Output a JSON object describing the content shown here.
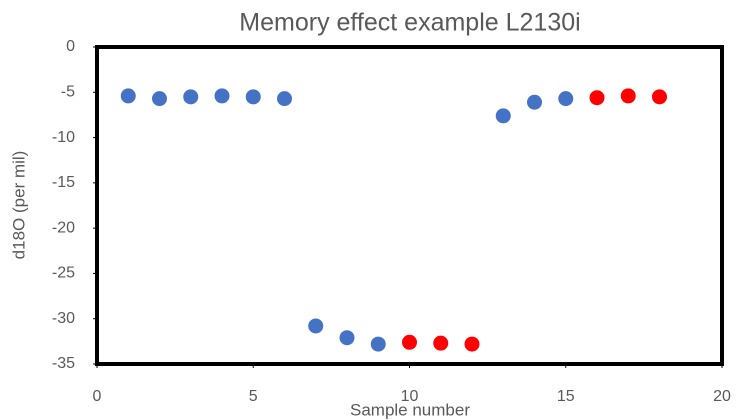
{
  "chart_data": {
    "type": "scatter",
    "title": "Memory effect example L2130i",
    "x_label": "Sample number",
    "y_label": "d18O (per mil)",
    "series": [
      {
        "color": "#4472c4",
        "x": [
          1,
          2,
          3,
          4,
          5,
          6,
          7,
          8,
          9,
          13,
          14,
          15
        ],
        "values": [
          -5.4,
          -5.7,
          -5.5,
          -5.4,
          -5.5,
          -5.7,
          -30.8,
          -32.1,
          -32.8,
          -7.6,
          -6.1,
          -5.7
        ]
      },
      {
        "color": "#ff0000",
        "x": [
          10,
          11,
          12,
          16,
          17,
          18
        ],
        "values": [
          -32.6,
          -32.7,
          -32.8,
          -5.6,
          -5.4,
          -5.5
        ]
      }
    ],
    "xlim": [
      0,
      20
    ],
    "xticks": [
      0,
      5,
      10,
      15,
      20
    ],
    "ylim": [
      -35,
      0
    ],
    "yticks": [
      0,
      -5,
      -10,
      -15,
      -20,
      -25,
      -30,
      -35
    ]
  }
}
